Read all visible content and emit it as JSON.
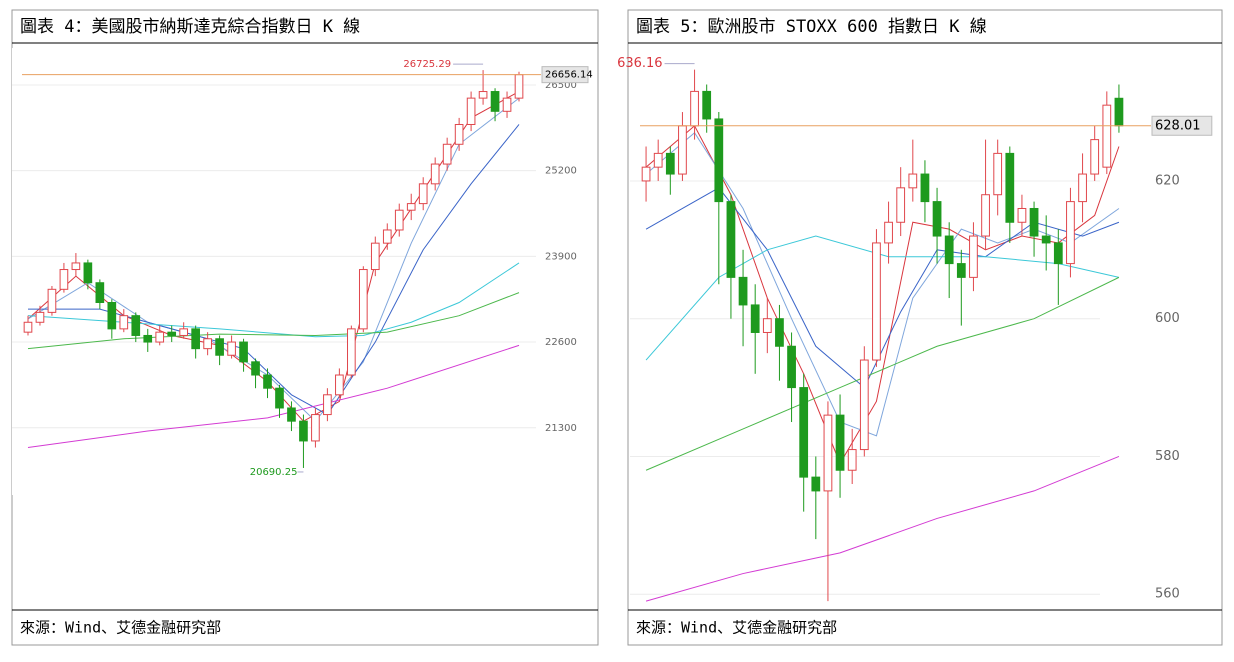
{
  "chart_data": [
    {
      "type": "candlestick",
      "title": "圖表 4：美國股市納斯達克綜合指數日 K 線",
      "source": "來源：Wind、艾德金融研究部",
      "ylim": [
        20280,
        27030
      ],
      "yticks": [
        21300,
        22600,
        23900,
        25200,
        26500
      ],
      "grid": true,
      "up_color": "#e0474c",
      "down_color": "#1e9a1e",
      "last_line_color": "#e8a060",
      "open": [
        22750,
        22900,
        23050,
        23400,
        23700,
        23800,
        23500,
        23200,
        22800,
        23000,
        22700,
        22600,
        22750,
        22700,
        22800,
        22500,
        22650,
        22400,
        22600,
        22300,
        22100,
        21900,
        21600,
        21400,
        21100,
        21500,
        21800,
        22100,
        22800,
        23700,
        24100,
        24300,
        24600,
        24700,
        25000,
        25300,
        25600,
        25900,
        26300,
        26400,
        26100,
        26300
      ],
      "high": [
        23000,
        23150,
        23450,
        23800,
        23950,
        23850,
        23550,
        23250,
        23100,
        23050,
        22800,
        22850,
        22850,
        22900,
        22850,
        22750,
        22700,
        22700,
        22650,
        22350,
        22200,
        21950,
        21700,
        21500,
        21600,
        21900,
        22200,
        22850,
        23750,
        24200,
        24400,
        24700,
        24850,
        25100,
        25400,
        25700,
        26000,
        26400,
        26725.29,
        26450,
        26400,
        26700
      ],
      "low": [
        22700,
        22850,
        23000,
        23350,
        23600,
        23400,
        23100,
        22650,
        22750,
        22600,
        22450,
        22550,
        22600,
        22650,
        22350,
        22400,
        22250,
        22350,
        22150,
        21900,
        21750,
        21450,
        21250,
        20690.25,
        21000,
        21400,
        21750,
        22050,
        22750,
        23600,
        24000,
        24200,
        24450,
        24600,
        24900,
        25200,
        25500,
        25800,
        26200,
        25950,
        26000,
        26250
      ],
      "close": [
        22900,
        23050,
        23400,
        23700,
        23800,
        23500,
        23200,
        22800,
        23000,
        22700,
        22600,
        22750,
        22700,
        22800,
        22500,
        22650,
        22400,
        22600,
        22300,
        22100,
        21900,
        21600,
        21400,
        21100,
        21500,
        21800,
        22100,
        22800,
        23700,
        24100,
        24300,
        24600,
        24700,
        25000,
        25300,
        25600,
        25900,
        26300,
        26400,
        26100,
        26300,
        26656.14
      ],
      "lines": [
        {
          "color": "#d9363e",
          "x": [
            0,
            4,
            8,
            12,
            16,
            20,
            23,
            26,
            29,
            33,
            37,
            41
          ],
          "values": [
            22950,
            23600,
            23000,
            22700,
            22550,
            22000,
            21400,
            21700,
            23800,
            24900,
            26000,
            26400
          ]
        },
        {
          "color": "#7fa6dc",
          "x": [
            0,
            5,
            10,
            15,
            20,
            24,
            28,
            32,
            36,
            41
          ],
          "values": [
            22950,
            23500,
            22900,
            22650,
            22100,
            21400,
            22300,
            24100,
            25600,
            26300
          ]
        },
        {
          "color": "#3a64c8",
          "x": [
            0,
            6,
            12,
            18,
            22,
            25,
            29,
            33,
            37,
            41
          ],
          "values": [
            23100,
            23100,
            22800,
            22500,
            21800,
            21500,
            22600,
            24000,
            25000,
            25900
          ]
        },
        {
          "color": "#3cc8d8",
          "x": [
            0,
            8,
            16,
            24,
            28,
            32,
            36,
            41
          ],
          "values": [
            23000,
            22900,
            22800,
            22680,
            22700,
            22900,
            23200,
            23800
          ]
        },
        {
          "color": "#4cb84c",
          "x": [
            0,
            8,
            16,
            24,
            30,
            36,
            41
          ],
          "values": [
            22500,
            22650,
            22720,
            22700,
            22750,
            23000,
            23350
          ]
        },
        {
          "color": "#d33bd3",
          "x": [
            0,
            10,
            20,
            30,
            41
          ],
          "values": [
            21000,
            21250,
            21450,
            21900,
            22550
          ]
        }
      ]
    },
    {
      "type": "candlestick",
      "title": "圖表 5：歐洲股市 STOXX 600 指數日 K 線",
      "source": "來源：Wind、艾德金融研究部",
      "ylim": [
        558,
        639.3
      ],
      "yticks": [
        560,
        580,
        600,
        620
      ],
      "grid": true,
      "up_color": "#e0474c",
      "down_color": "#1e9a1e",
      "last_line_color": "#e8a060",
      "open": [
        620,
        622,
        624,
        621,
        628,
        633,
        629,
        617,
        606,
        602,
        598,
        600,
        596,
        590,
        577,
        575,
        586,
        578,
        581,
        594,
        611,
        614,
        619,
        621,
        617,
        612,
        608,
        606,
        612,
        618,
        624,
        614,
        616,
        612,
        611,
        608,
        617,
        621,
        622,
        632
      ],
      "high": [
        625,
        626,
        625,
        630,
        636.16,
        634,
        630,
        618,
        610,
        605,
        603,
        602,
        598,
        592,
        580,
        588,
        589,
        584,
        596,
        613,
        617,
        622,
        626,
        623,
        619,
        614,
        610,
        614,
        626,
        626,
        625,
        618,
        617,
        615,
        613,
        619,
        624,
        628,
        633,
        634
      ],
      "low": [
        617,
        620,
        618,
        620,
        626,
        627,
        605,
        600,
        596,
        592,
        595,
        591,
        585,
        572,
        568,
        559,
        574,
        576,
        580,
        593,
        608,
        612,
        617,
        614,
        608,
        603,
        599,
        604,
        610,
        615,
        611,
        612,
        609,
        607,
        602,
        606,
        614,
        620,
        621,
        627
      ],
      "close": [
        622,
        624,
        621,
        628,
        633,
        629,
        617,
        606,
        602,
        598,
        600,
        596,
        590,
        577,
        575,
        586,
        578,
        581,
        594,
        611,
        614,
        619,
        621,
        617,
        612,
        608,
        606,
        612,
        618,
        624,
        614,
        616,
        612,
        611,
        608,
        617,
        621,
        626,
        631,
        628.01
      ],
      "lines": [
        {
          "color": "#d9363e",
          "x": [
            0,
            4,
            7,
            10,
            13,
            16,
            19,
            22,
            25,
            28,
            31,
            34,
            37,
            39
          ],
          "values": [
            622,
            628,
            618,
            603,
            592,
            579,
            588,
            614,
            613,
            610,
            612,
            611,
            615,
            625
          ]
        },
        {
          "color": "#7fa6dc",
          "x": [
            0,
            4,
            8,
            12,
            16,
            19,
            22,
            26,
            29,
            32,
            35,
            39
          ],
          "values": [
            621,
            627,
            616,
            600,
            585,
            583,
            603,
            613,
            611,
            613,
            611,
            616
          ]
        },
        {
          "color": "#3a64c8",
          "x": [
            0,
            3,
            6,
            10,
            14,
            18,
            21,
            24,
            28,
            32,
            36,
            39
          ],
          "values": [
            613,
            616,
            619,
            610,
            596,
            590,
            601,
            610,
            609,
            614,
            612,
            614
          ]
        },
        {
          "color": "#3cc8d8",
          "x": [
            0,
            6,
            10,
            14,
            20,
            28,
            34,
            39
          ],
          "values": [
            594,
            606,
            610,
            612,
            609,
            609,
            608,
            606
          ]
        },
        {
          "color": "#4cb84c",
          "x": [
            0,
            8,
            16,
            24,
            32,
            39
          ],
          "values": [
            578,
            584,
            590,
            596,
            600,
            606
          ]
        },
        {
          "color": "#d33bd3",
          "x": [
            0,
            8,
            16,
            24,
            32,
            39
          ],
          "values": [
            559,
            563,
            566,
            571,
            575,
            580
          ]
        }
      ]
    }
  ]
}
